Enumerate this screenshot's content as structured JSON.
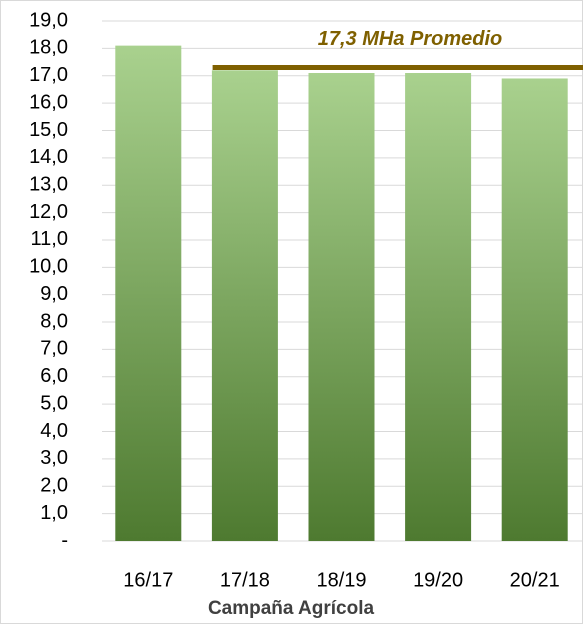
{
  "chart_data": {
    "type": "bar",
    "categories": [
      "16/17",
      "17/18",
      "18/19",
      "19/20",
      "20/21"
    ],
    "values": [
      18.1,
      17.2,
      17.1,
      17.1,
      16.9
    ],
    "gradient": [
      "#a9d18e",
      "#4e7a30"
    ],
    "x_label": "Campaña Agrícola",
    "ylim": [
      0,
      19
    ],
    "yticks": [
      {
        "value": 0,
        "label": "-"
      },
      {
        "value": 1,
        "label": "1,0"
      },
      {
        "value": 2,
        "label": "2,0"
      },
      {
        "value": 3,
        "label": "3,0"
      },
      {
        "value": 4,
        "label": "4,0"
      },
      {
        "value": 5,
        "label": "5,0"
      },
      {
        "value": 6,
        "label": "6,0"
      },
      {
        "value": 7,
        "label": "7,0"
      },
      {
        "value": 8,
        "label": "8,0"
      },
      {
        "value": 9,
        "label": "9,0"
      },
      {
        "value": 10,
        "label": "10,0"
      },
      {
        "value": 11,
        "label": "11,0"
      },
      {
        "value": 12,
        "label": "12,0"
      },
      {
        "value": 13,
        "label": "13,0"
      },
      {
        "value": 14,
        "label": "14,0"
      },
      {
        "value": 15,
        "label": "15,0"
      },
      {
        "value": 16,
        "label": "16,0"
      },
      {
        "value": 17,
        "label": "17,0"
      },
      {
        "value": 18,
        "label": "18,0"
      },
      {
        "value": 19,
        "label": "19,0"
      }
    ],
    "grid": true,
    "average_line": {
      "value": 17.3,
      "label": "17,3 MHa Promedio",
      "color": "#7f6000"
    }
  }
}
